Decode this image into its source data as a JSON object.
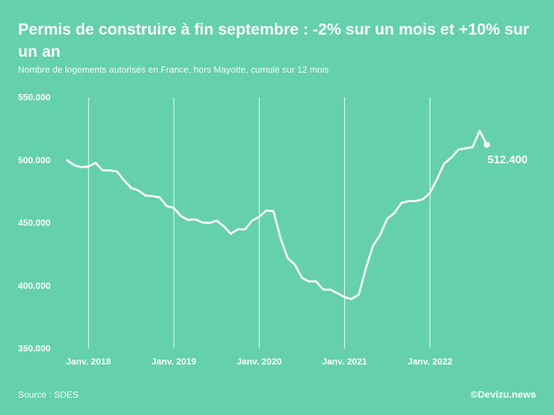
{
  "header": {
    "title": "Permis de construire à fin septembre : -2% sur un mois et +10% sur un an",
    "subtitle": "Nombre de logements autorisés en France, hors Mayotte, cumulé sur 12 mois"
  },
  "footer": {
    "source": "Source : SDES",
    "brand": "©Devizu.news"
  },
  "colors": {
    "background": "#64d1aa",
    "line": "#ffffff"
  },
  "chart_data": {
    "type": "line",
    "title": "Permis de construire à fin septembre : -2% sur un mois et +10% sur un an",
    "xlabel": "",
    "ylabel": "",
    "ylim": [
      350000,
      550000
    ],
    "yticks": [
      550000,
      500000,
      450000,
      400000,
      350000
    ],
    "ytick_labels": [
      "550.000",
      "500.000",
      "450.000",
      "400.000",
      "350.000"
    ],
    "xticks": [
      {
        "label": "Janv. 2018",
        "month": "2018-01"
      },
      {
        "label": "Janv. 2019",
        "month": "2019-01"
      },
      {
        "label": "Janv. 2020",
        "month": "2020-01"
      },
      {
        "label": "Janv. 2021",
        "month": "2021-01"
      },
      {
        "label": "Janv. 2022",
        "month": "2022-01"
      }
    ],
    "x_start": "2017-10",
    "x_end": "2022-09",
    "series": [
      {
        "name": "Logements autorisés (cumul 12 mois)",
        "values": [
          500000,
          496000,
          494500,
          495000,
          498000,
          492000,
          492000,
          491000,
          484000,
          478000,
          476000,
          472000,
          471500,
          470500,
          463500,
          462000,
          455500,
          452500,
          453000,
          450500,
          450000,
          452000,
          447500,
          441500,
          445000,
          445000,
          452000,
          455000,
          460000,
          459500,
          438000,
          422000,
          417000,
          406500,
          403500,
          403500,
          397000,
          397000,
          394000,
          391000,
          389500,
          393000,
          414000,
          432000,
          440500,
          453500,
          458000,
          466000,
          467500,
          467500,
          469000,
          474000,
          485000,
          497500,
          502000,
          508500,
          509500,
          510500,
          523500,
          512400
        ]
      }
    ],
    "last_value_label": "512.400"
  }
}
